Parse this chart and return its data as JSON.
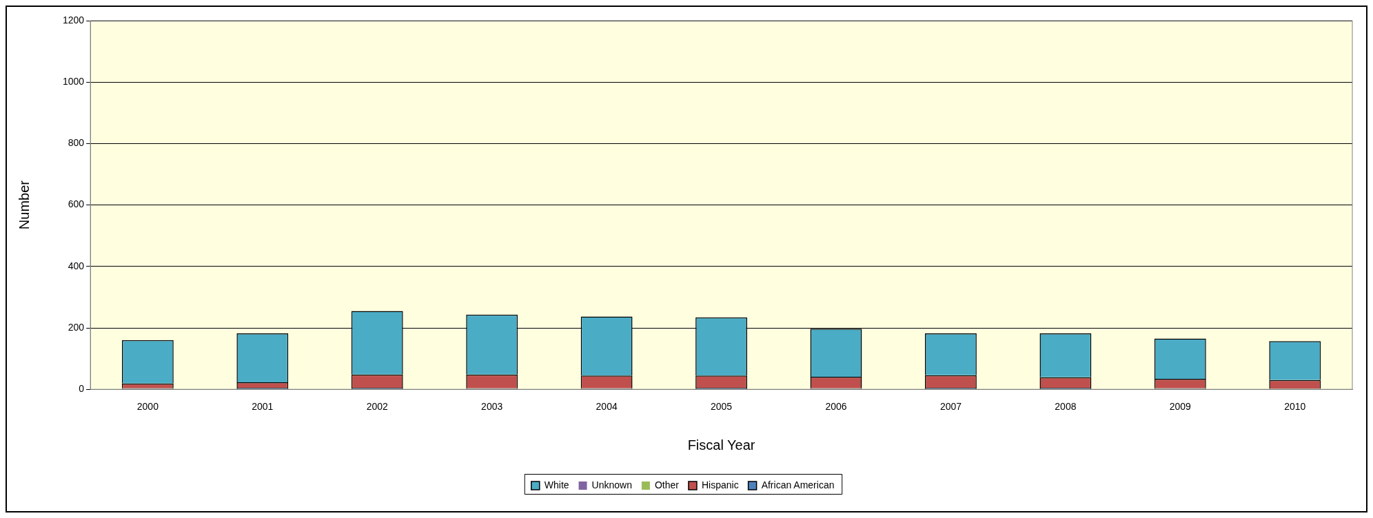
{
  "chart_data": {
    "type": "bar",
    "stacked": true,
    "xlabel": "Fiscal Year",
    "ylabel": "Number",
    "categories": [
      "2000",
      "2001",
      "2002",
      "2003",
      "2004",
      "2005",
      "2006",
      "2007",
      "2008",
      "2009",
      "2010"
    ],
    "series": [
      {
        "name": "African American",
        "color": "#4f81bd",
        "values": [
          3,
          5,
          5,
          3,
          3,
          5,
          3,
          5,
          5,
          3,
          2
        ]
      },
      {
        "name": "Hispanic",
        "color": "#c0504d",
        "values": [
          16,
          18,
          43,
          45,
          42,
          40,
          38,
          41,
          34,
          31,
          28
        ]
      },
      {
        "name": "Other",
        "color": "#9bbb59",
        "values": [
          0,
          0,
          0,
          0,
          0,
          0,
          0,
          0,
          0,
          0,
          0
        ]
      },
      {
        "name": "Unknown",
        "color": "#8064a2",
        "values": [
          0,
          0,
          0,
          0,
          0,
          0,
          0,
          0,
          0,
          0,
          0
        ]
      },
      {
        "name": "White",
        "color": "#4bacc6",
        "values": [
          141,
          159,
          207,
          195,
          192,
          189,
          156,
          136,
          143,
          131,
          127
        ]
      }
    ],
    "ylim": [
      0,
      1200
    ],
    "yticks": [
      0,
      200,
      400,
      600,
      800,
      1000,
      1200
    ],
    "grid": "y",
    "legend": "bottom"
  }
}
